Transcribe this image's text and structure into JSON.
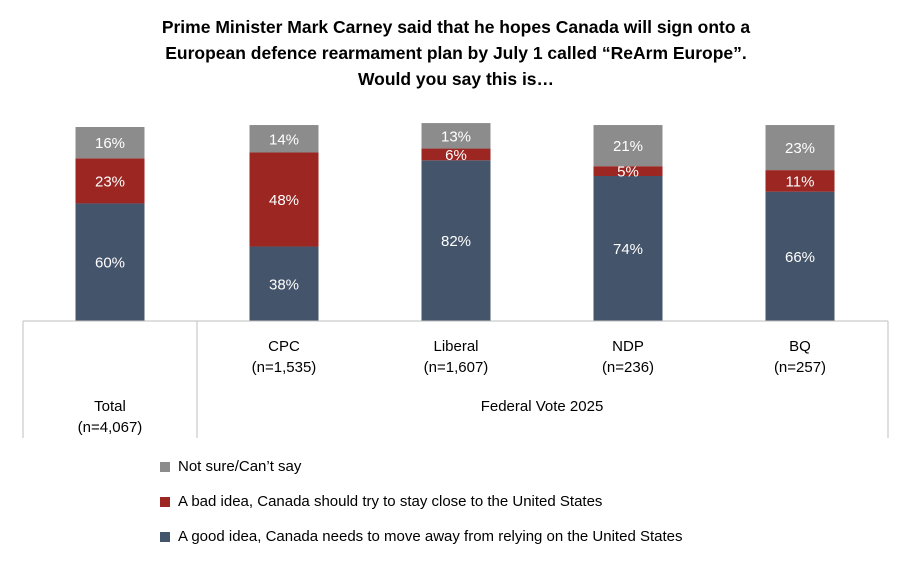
{
  "title_lines": [
    "Prime Minister Mark Carney said that he hopes Canada will sign onto a",
    "European defence rearmament plan by July 1 called “ReArm Europe”.",
    "Would you say this is…"
  ],
  "chart_data": {
    "type": "bar",
    "stacked": true,
    "categories": [
      {
        "label": "Total",
        "n": "(n=4,067)"
      },
      {
        "label": "CPC",
        "n": "(n=1,535)"
      },
      {
        "label": "Liberal",
        "n": "(n=1,607)"
      },
      {
        "label": "NDP",
        "n": "(n=236)"
      },
      {
        "label": "BQ",
        "n": "(n=257)"
      }
    ],
    "group_label": "Federal Vote 2025",
    "series": [
      {
        "name": "A good idea, Canada needs to move away from relying on the United States",
        "color": "#44546a",
        "values": [
          60,
          38,
          82,
          74,
          66
        ],
        "labels": [
          "60%",
          "38%",
          "82%",
          "74%",
          "66%"
        ]
      },
      {
        "name": "A bad idea, Canada should try to stay close to the United States",
        "color": "#9b2622",
        "values": [
          23,
          48,
          6,
          5,
          11
        ],
        "labels": [
          "23%",
          "48%",
          "6%",
          "5%",
          "11%"
        ]
      },
      {
        "name": "Not sure/Can’t say",
        "color": "#8c8c8c",
        "values": [
          16,
          14,
          13,
          21,
          23
        ],
        "labels": [
          "16%",
          "14%",
          "13%",
          "21%",
          "23%"
        ]
      }
    ],
    "legend_position": "bottom-left",
    "grid": false
  }
}
